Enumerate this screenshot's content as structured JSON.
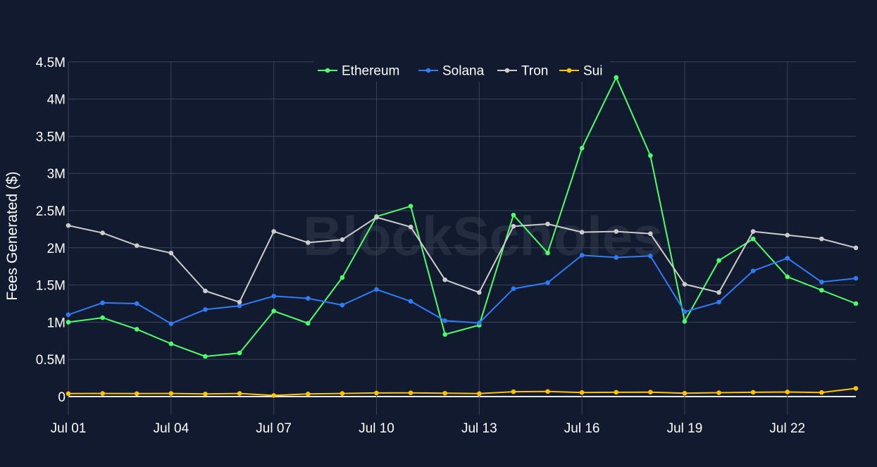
{
  "chart_data": {
    "type": "line",
    "ylabel": "Fees Generated ($)",
    "watermark": "BlockScholes",
    "ylim": [
      -250000,
      4500000
    ],
    "y_ticks": [
      0,
      500000,
      1000000,
      1500000,
      2000000,
      2500000,
      3000000,
      3500000,
      4000000,
      4500000
    ],
    "y_tick_labels": [
      "0",
      "0.5M",
      "1M",
      "1.5M",
      "2M",
      "2.5M",
      "3M",
      "3.5M",
      "4M",
      "4.5M"
    ],
    "x": [
      "Jul 01",
      "Jul 02",
      "Jul 03",
      "Jul 04",
      "Jul 05",
      "Jul 06",
      "Jul 07",
      "Jul 08",
      "Jul 09",
      "Jul 10",
      "Jul 11",
      "Jul 12",
      "Jul 13",
      "Jul 14",
      "Jul 15",
      "Jul 16",
      "Jul 17",
      "Jul 18",
      "Jul 19",
      "Jul 20",
      "Jul 21",
      "Jul 22",
      "Jul 23",
      "Jul 24"
    ],
    "x_tick_labels": [
      "Jul 01",
      "Jul 04",
      "Jul 07",
      "Jul 10",
      "Jul 13",
      "Jul 16",
      "Jul 19",
      "Jul 22"
    ],
    "grid": true,
    "legend_position": "top-center",
    "series": [
      {
        "name": "Ethereum",
        "color": "#4dff6a",
        "values": [
          1000000,
          1060000,
          905000,
          710000,
          540000,
          585000,
          1150000,
          985000,
          1600000,
          2420000,
          2560000,
          835000,
          960000,
          2440000,
          1930000,
          3340000,
          4290000,
          3240000,
          1010000,
          1830000,
          2120000,
          1610000,
          1430000,
          1250000
        ]
      },
      {
        "name": "Solana",
        "color": "#2f7cf6",
        "values": [
          1100000,
          1260000,
          1250000,
          980000,
          1170000,
          1220000,
          1350000,
          1320000,
          1230000,
          1440000,
          1280000,
          1020000,
          990000,
          1450000,
          1530000,
          1900000,
          1870000,
          1890000,
          1140000,
          1270000,
          1690000,
          1860000,
          1540000,
          1590000
        ]
      },
      {
        "name": "Tron",
        "color": "#cccccc",
        "values": [
          2300000,
          2200000,
          2030000,
          1930000,
          1420000,
          1270000,
          2220000,
          2070000,
          2110000,
          2410000,
          2280000,
          1570000,
          1400000,
          2290000,
          2320000,
          2210000,
          2220000,
          2190000,
          1510000,
          1400000,
          2220000,
          2170000,
          2120000,
          2000000
        ]
      },
      {
        "name": "Sui",
        "color": "#ffc300",
        "values": [
          40000,
          42000,
          40000,
          42000,
          35000,
          42000,
          15000,
          35000,
          42000,
          48000,
          50000,
          45000,
          40000,
          65000,
          68000,
          55000,
          58000,
          60000,
          45000,
          52000,
          58000,
          62000,
          55000,
          110000
        ]
      }
    ]
  }
}
